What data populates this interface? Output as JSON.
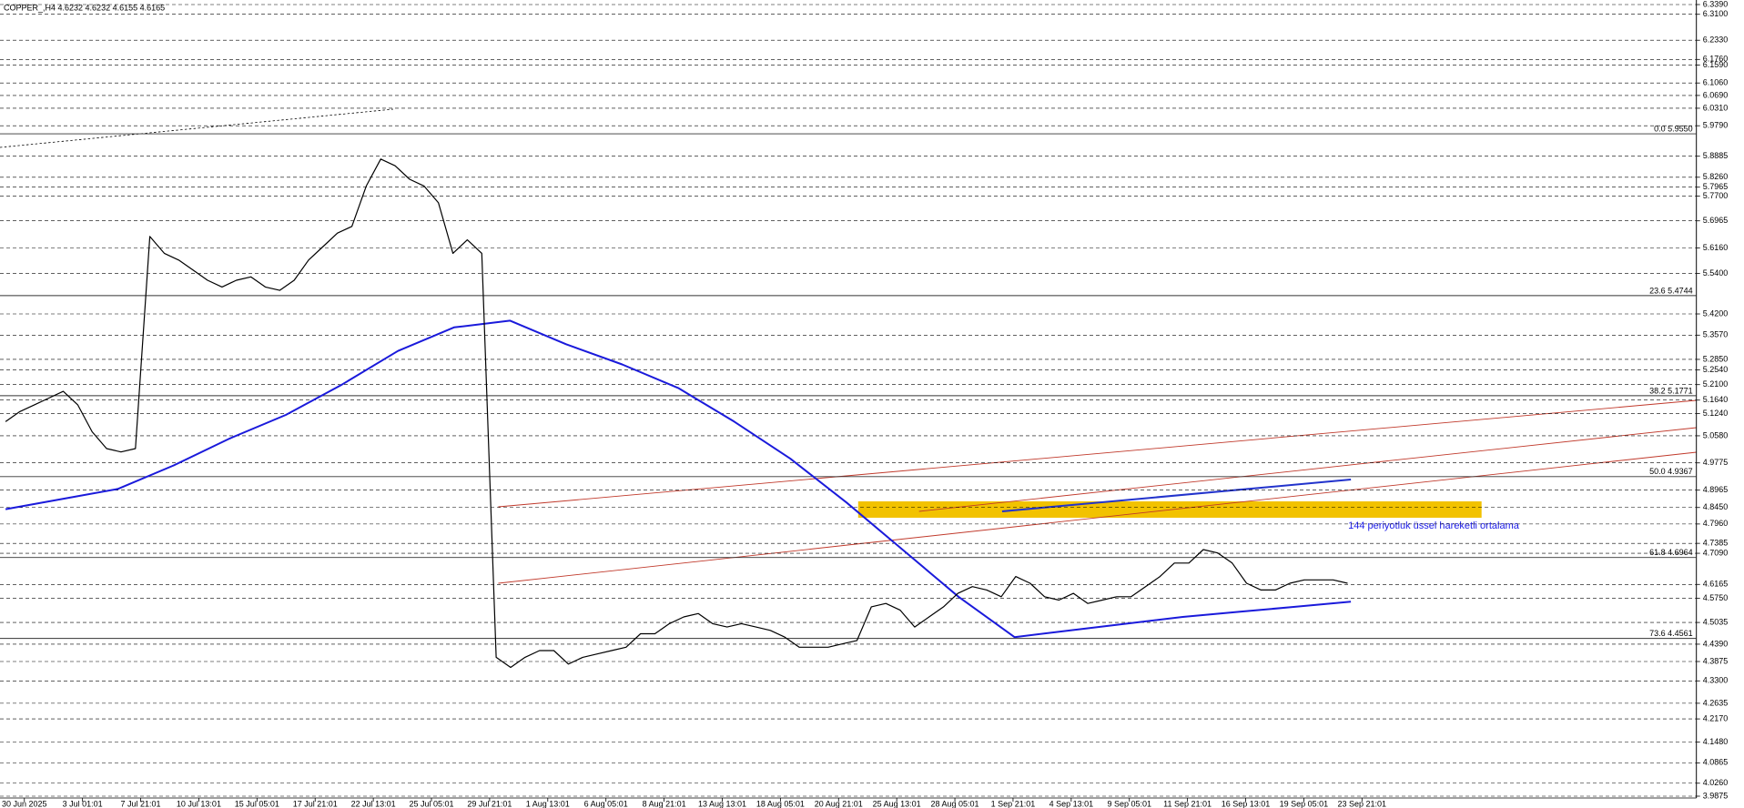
{
  "chart_data": {
    "type": "line",
    "title": "COPPER_,H4 4.6232 4.6232 4.6155 4.6165",
    "x_labels": [
      "30 Jun 2025",
      "3 Jul 01:01",
      "7 Jul 21:01",
      "10 Jul 13:01",
      "15 Jul 05:01",
      "17 Jul 21:01",
      "22 Jul 13:01",
      "25 Jul 05:01",
      "29 Jul 21:01",
      "1 Aug 13:01",
      "6 Aug 05:01",
      "8 Aug 21:01",
      "13 Aug 13:01",
      "18 Aug 05:01",
      "20 Aug 21:01",
      "25 Aug 13:01",
      "28 Aug 05:01",
      "1 Sep 21:01",
      "4 Sep 13:01",
      "9 Sep 05:01",
      "11 Sep 21:01",
      "16 Sep 13:01",
      "19 Sep 05:01",
      "23 Sep 21:01"
    ],
    "ylim": [
      3.9875,
      6.339
    ],
    "yticks": [
      {
        "value": 6.339,
        "label": "6.3390"
      },
      {
        "value": 6.31,
        "label": "6.3100"
      },
      {
        "value": 6.233,
        "label": "6.2330"
      },
      {
        "value": 6.176,
        "label": "6.1760"
      },
      {
        "value": 6.159,
        "label": "6.1590"
      },
      {
        "value": 6.106,
        "label": "6.1060"
      },
      {
        "value": 6.069,
        "label": "6.0690"
      },
      {
        "value": 6.031,
        "label": "6.0310"
      },
      {
        "value": 5.979,
        "label": "5.9790"
      },
      5.8885,
      {
        "value": 5.826,
        "label": "5.8260"
      },
      5.7965,
      {
        "value": 5.77,
        "label": "5.7700"
      },
      5.6965,
      {
        "value": 5.616,
        "label": "5.6160"
      },
      {
        "value": 5.54,
        "label": "5.5400"
      },
      {
        "value": 5.42,
        "label": "5.4200"
      },
      {
        "value": 5.357,
        "label": "5.3570"
      },
      {
        "value": 5.285,
        "label": "5.2850"
      },
      {
        "value": 5.254,
        "label": "5.2540"
      },
      {
        "value": 5.21,
        "label": "5.2100"
      },
      {
        "value": 5.164,
        "label": "5.1640"
      },
      {
        "value": 5.124,
        "label": "5.1240"
      },
      {
        "value": 5.058,
        "label": "5.0580"
      },
      4.9775,
      4.8965,
      {
        "value": 4.845,
        "label": "4.8450"
      },
      {
        "value": 4.796,
        "label": "4.7960"
      },
      4.7385,
      {
        "value": 4.709,
        "label": "4.7090"
      },
      4.6165,
      {
        "value": 4.575,
        "label": "4.5750"
      },
      4.5035,
      {
        "value": 4.439,
        "label": "4.4390"
      },
      4.3875,
      {
        "value": 4.33,
        "label": "4.3300"
      },
      4.2635,
      {
        "value": 4.217,
        "label": "4.2170"
      },
      {
        "value": 4.148,
        "label": "4.1480"
      },
      4.0865,
      {
        "value": 4.026,
        "label": "4.0260"
      },
      3.9875
    ],
    "grid": true,
    "fib_levels": [
      {
        "label": "0.0 5.9550",
        "value": 5.955
      },
      {
        "label": "23.6 5.4744",
        "value": 5.4744
      },
      {
        "label": "38.2 5.1771",
        "value": 5.1771
      },
      {
        "label": "50.0 4.9367",
        "value": 4.9367
      },
      {
        "label": "61.8 4.6964",
        "value": 4.6964
      },
      {
        "label": "73.6 4.4561",
        "value": 4.4561
      }
    ],
    "series": [
      {
        "color": "#000000",
        "values": [
          5.1,
          5.13,
          5.15,
          5.17,
          5.19,
          5.15,
          5.07,
          5.02,
          5.01,
          5.02,
          5.65,
          5.6,
          5.58,
          5.55,
          5.52,
          5.5,
          5.52,
          5.53,
          5.5,
          5.49,
          5.52,
          5.58,
          5.62,
          5.66,
          5.68,
          5.8,
          5.88,
          5.86,
          5.82,
          5.8,
          5.75,
          5.6,
          5.64,
          5.6,
          4.4,
          4.37,
          4.4,
          4.42,
          4.42,
          4.38,
          4.4,
          4.41,
          4.42,
          4.43,
          4.47,
          4.47,
          4.5,
          4.52,
          4.53,
          4.5,
          4.49,
          4.5,
          4.49,
          4.48,
          4.46,
          4.43,
          4.43,
          4.43,
          4.44,
          4.45,
          4.55,
          4.56,
          4.54,
          4.49,
          4.52,
          4.55,
          4.59,
          4.61,
          4.6,
          4.58,
          4.64,
          4.62,
          4.58,
          4.57,
          4.59,
          4.56,
          4.57,
          4.58,
          4.58,
          4.61,
          4.64,
          4.68,
          4.68,
          4.72,
          4.71,
          4.68,
          4.62,
          4.6,
          4.6,
          4.62,
          4.63,
          4.63,
          4.63,
          4.62
        ]
      },
      {
        "name": "144 periyotluk üssel hareketli ortalama",
        "color": "#1a1adb",
        "values": [
          4.84,
          4.87,
          4.9,
          4.97,
          5.05,
          5.12,
          5.21,
          5.31,
          5.38,
          5.4,
          5.33,
          5.27,
          5.2,
          5.1,
          4.99,
          4.86,
          4.72,
          4.58,
          4.46,
          4.48,
          4.5,
          4.52,
          4.535,
          4.55,
          4.565
        ]
      }
    ]
  }
}
